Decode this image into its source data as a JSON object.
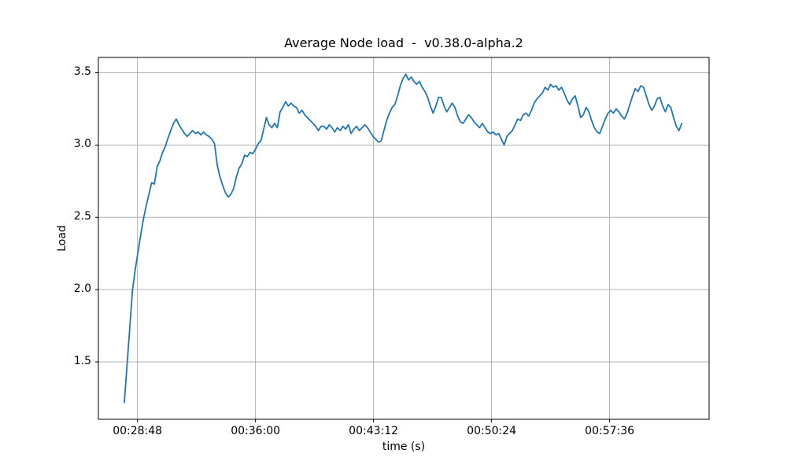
{
  "chart_data": {
    "type": "line",
    "title": "Average Node load  -  v0.38.0-alpha.2",
    "xlabel": "time (s)",
    "ylabel": "Load",
    "grid": true,
    "legend": "none",
    "line_color": "#1f77b4",
    "grid_color": "#b0b0b0",
    "spine_color": "#000000",
    "background_color": "#ffffff",
    "x_axis": {
      "tick_labels": [
        "00:28:48",
        "00:36:00",
        "00:43:12",
        "00:50:24",
        "00:57:36"
      ],
      "tick_seconds": [
        1728,
        2160,
        2592,
        3024,
        3456
      ],
      "xlim_seconds": [
        1585,
        3820
      ]
    },
    "y_axis": {
      "tick_labels": [
        "1.5",
        "2.0",
        "2.5",
        "3.0",
        "3.5"
      ],
      "ticks": [
        1.5,
        2.0,
        2.5,
        3.0,
        3.5
      ],
      "ylim": [
        1.103,
        3.606
      ]
    },
    "series": [
      {
        "name": "average-node-load",
        "x_start_s": 1680,
        "x_step_s": 10,
        "values": [
          1.22,
          1.48,
          1.74,
          2.0,
          2.14,
          2.26,
          2.38,
          2.49,
          2.58,
          2.66,
          2.74,
          2.73,
          2.85,
          2.89,
          2.95,
          2.99,
          3.05,
          3.1,
          3.15,
          3.18,
          3.14,
          3.11,
          3.08,
          3.06,
          3.08,
          3.1,
          3.08,
          3.09,
          3.07,
          3.09,
          3.07,
          3.06,
          3.04,
          3.01,
          2.86,
          2.78,
          2.72,
          2.67,
          2.64,
          2.66,
          2.7,
          2.78,
          2.84,
          2.87,
          2.93,
          2.92,
          2.95,
          2.94,
          2.97,
          3.01,
          3.03,
          3.11,
          3.19,
          3.14,
          3.12,
          3.15,
          3.12,
          3.23,
          3.26,
          3.3,
          3.27,
          3.29,
          3.27,
          3.26,
          3.22,
          3.24,
          3.21,
          3.19,
          3.17,
          3.15,
          3.13,
          3.1,
          3.13,
          3.13,
          3.11,
          3.14,
          3.12,
          3.09,
          3.12,
          3.1,
          3.13,
          3.11,
          3.14,
          3.08,
          3.11,
          3.13,
          3.1,
          3.12,
          3.14,
          3.12,
          3.09,
          3.06,
          3.04,
          3.02,
          3.03,
          3.1,
          3.17,
          3.22,
          3.26,
          3.28,
          3.34,
          3.41,
          3.46,
          3.49,
          3.45,
          3.47,
          3.44,
          3.42,
          3.44,
          3.4,
          3.37,
          3.33,
          3.27,
          3.22,
          3.27,
          3.33,
          3.33,
          3.27,
          3.23,
          3.26,
          3.29,
          3.26,
          3.2,
          3.16,
          3.15,
          3.18,
          3.21,
          3.19,
          3.16,
          3.14,
          3.12,
          3.15,
          3.12,
          3.09,
          3.08,
          3.09,
          3.07,
          3.08,
          3.04,
          3.0,
          3.06,
          3.08,
          3.1,
          3.14,
          3.18,
          3.17,
          3.21,
          3.22,
          3.2,
          3.24,
          3.29,
          3.32,
          3.34,
          3.36,
          3.4,
          3.38,
          3.42,
          3.4,
          3.41,
          3.38,
          3.4,
          3.36,
          3.31,
          3.28,
          3.32,
          3.34,
          3.27,
          3.19,
          3.21,
          3.26,
          3.23,
          3.17,
          3.12,
          3.09,
          3.08,
          3.13,
          3.18,
          3.22,
          3.24,
          3.22,
          3.25,
          3.23,
          3.2,
          3.18,
          3.22,
          3.28,
          3.34,
          3.39,
          3.37,
          3.41,
          3.4,
          3.34,
          3.28,
          3.24,
          3.27,
          3.32,
          3.33,
          3.27,
          3.23,
          3.28,
          3.26,
          3.19,
          3.13,
          3.1,
          3.15
        ]
      }
    ]
  }
}
